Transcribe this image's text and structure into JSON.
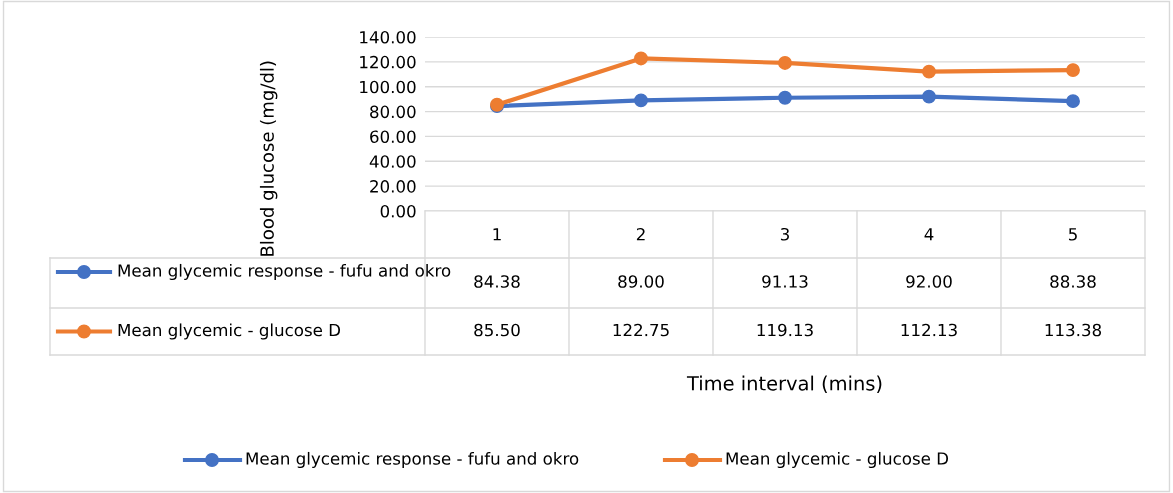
{
  "chart_data": {
    "type": "line",
    "ylabel": "Blood glucose (mg/dl)",
    "annotations": [
      "Time interval (mins)"
    ],
    "categories": [
      "1",
      "2",
      "3",
      "4",
      "5"
    ],
    "series": [
      {
        "name": "Mean glycemic response - fufu and okro",
        "color": "#4472c4",
        "values": [
          84.38,
          89.0,
          91.13,
          92.0,
          88.38
        ],
        "value_labels": [
          "84.38",
          "89.00",
          "91.13",
          "92.00",
          "88.38"
        ]
      },
      {
        "name": "Mean glycemic - glucose D",
        "color": "#ed7d31",
        "values": [
          85.5,
          122.75,
          119.13,
          112.13,
          113.38
        ],
        "value_labels": [
          "85.50",
          "122.75",
          "119.13",
          "112.13",
          "113.38"
        ]
      }
    ],
    "ylim": [
      0,
      140
    ],
    "yticks": [
      {
        "value": 0,
        "label": "0.00"
      },
      {
        "value": 20,
        "label": "20.00"
      },
      {
        "value": 40,
        "label": "40.00"
      },
      {
        "value": 60,
        "label": "60.00"
      },
      {
        "value": 80,
        "label": "80.00"
      },
      {
        "value": 100,
        "label": "100.00"
      },
      {
        "value": 120,
        "label": "120.00"
      },
      {
        "value": 140,
        "label": "140.00"
      }
    ],
    "grid": "y",
    "legend": "bottom",
    "marker": "circle",
    "line_style": "solid"
  }
}
